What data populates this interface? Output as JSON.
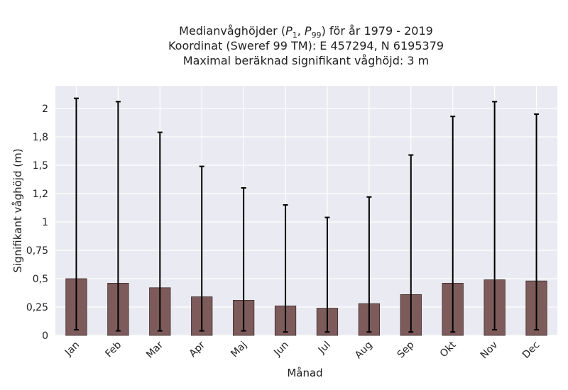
{
  "chart_data": {
    "type": "bar",
    "title_lines": [
      {
        "prefix": "Medianvåghöjder (",
        "p1_base": "P",
        "p1_sub": "1",
        "sep": ", ",
        "p99_base": "P",
        "p99_sub": "99",
        "suffix": ") för år 1979 - 2019"
      },
      "Koordinat (Sweref 99 TM): E 457294, N 6195379",
      "Maximal beräknad signifikant våghöjd: 3 m"
    ],
    "xlabel": "Månad",
    "ylabel": "Signifikant våghöjd (m)",
    "categories": [
      "Jan",
      "Feb",
      "Mar",
      "Apr",
      "Maj",
      "Jun",
      "Jul",
      "Aug",
      "Sep",
      "Okt",
      "Nov",
      "Dec"
    ],
    "series": [
      {
        "values": [
          0.5,
          0.46,
          0.42,
          0.34,
          0.31,
          0.26,
          0.24,
          0.28,
          0.36,
          0.46,
          0.49,
          0.48
        ],
        "p1": [
          0.05,
          0.04,
          0.04,
          0.04,
          0.04,
          0.03,
          0.03,
          0.03,
          0.03,
          0.03,
          0.05,
          0.05
        ],
        "p99": [
          2.09,
          2.06,
          1.79,
          1.49,
          1.3,
          1.15,
          1.04,
          1.22,
          1.59,
          1.93,
          2.06,
          1.95
        ]
      }
    ],
    "yticks": [
      0,
      0.25,
      0.5,
      0.75,
      1,
      1.25,
      1.5,
      1.75,
      2
    ],
    "ytick_labels": [
      "0",
      "0,25",
      "0,5",
      "0,75",
      "1",
      "1,2",
      "1,5",
      "1,8",
      "2"
    ],
    "ylim": [
      0,
      2.2
    ],
    "grid": true,
    "colors": {
      "bar": "#7d5b5b",
      "bar_edge": "#3d2b2b",
      "errorbar": "#000000",
      "background": "#eaeaf2",
      "grid": "#ffffff"
    }
  }
}
